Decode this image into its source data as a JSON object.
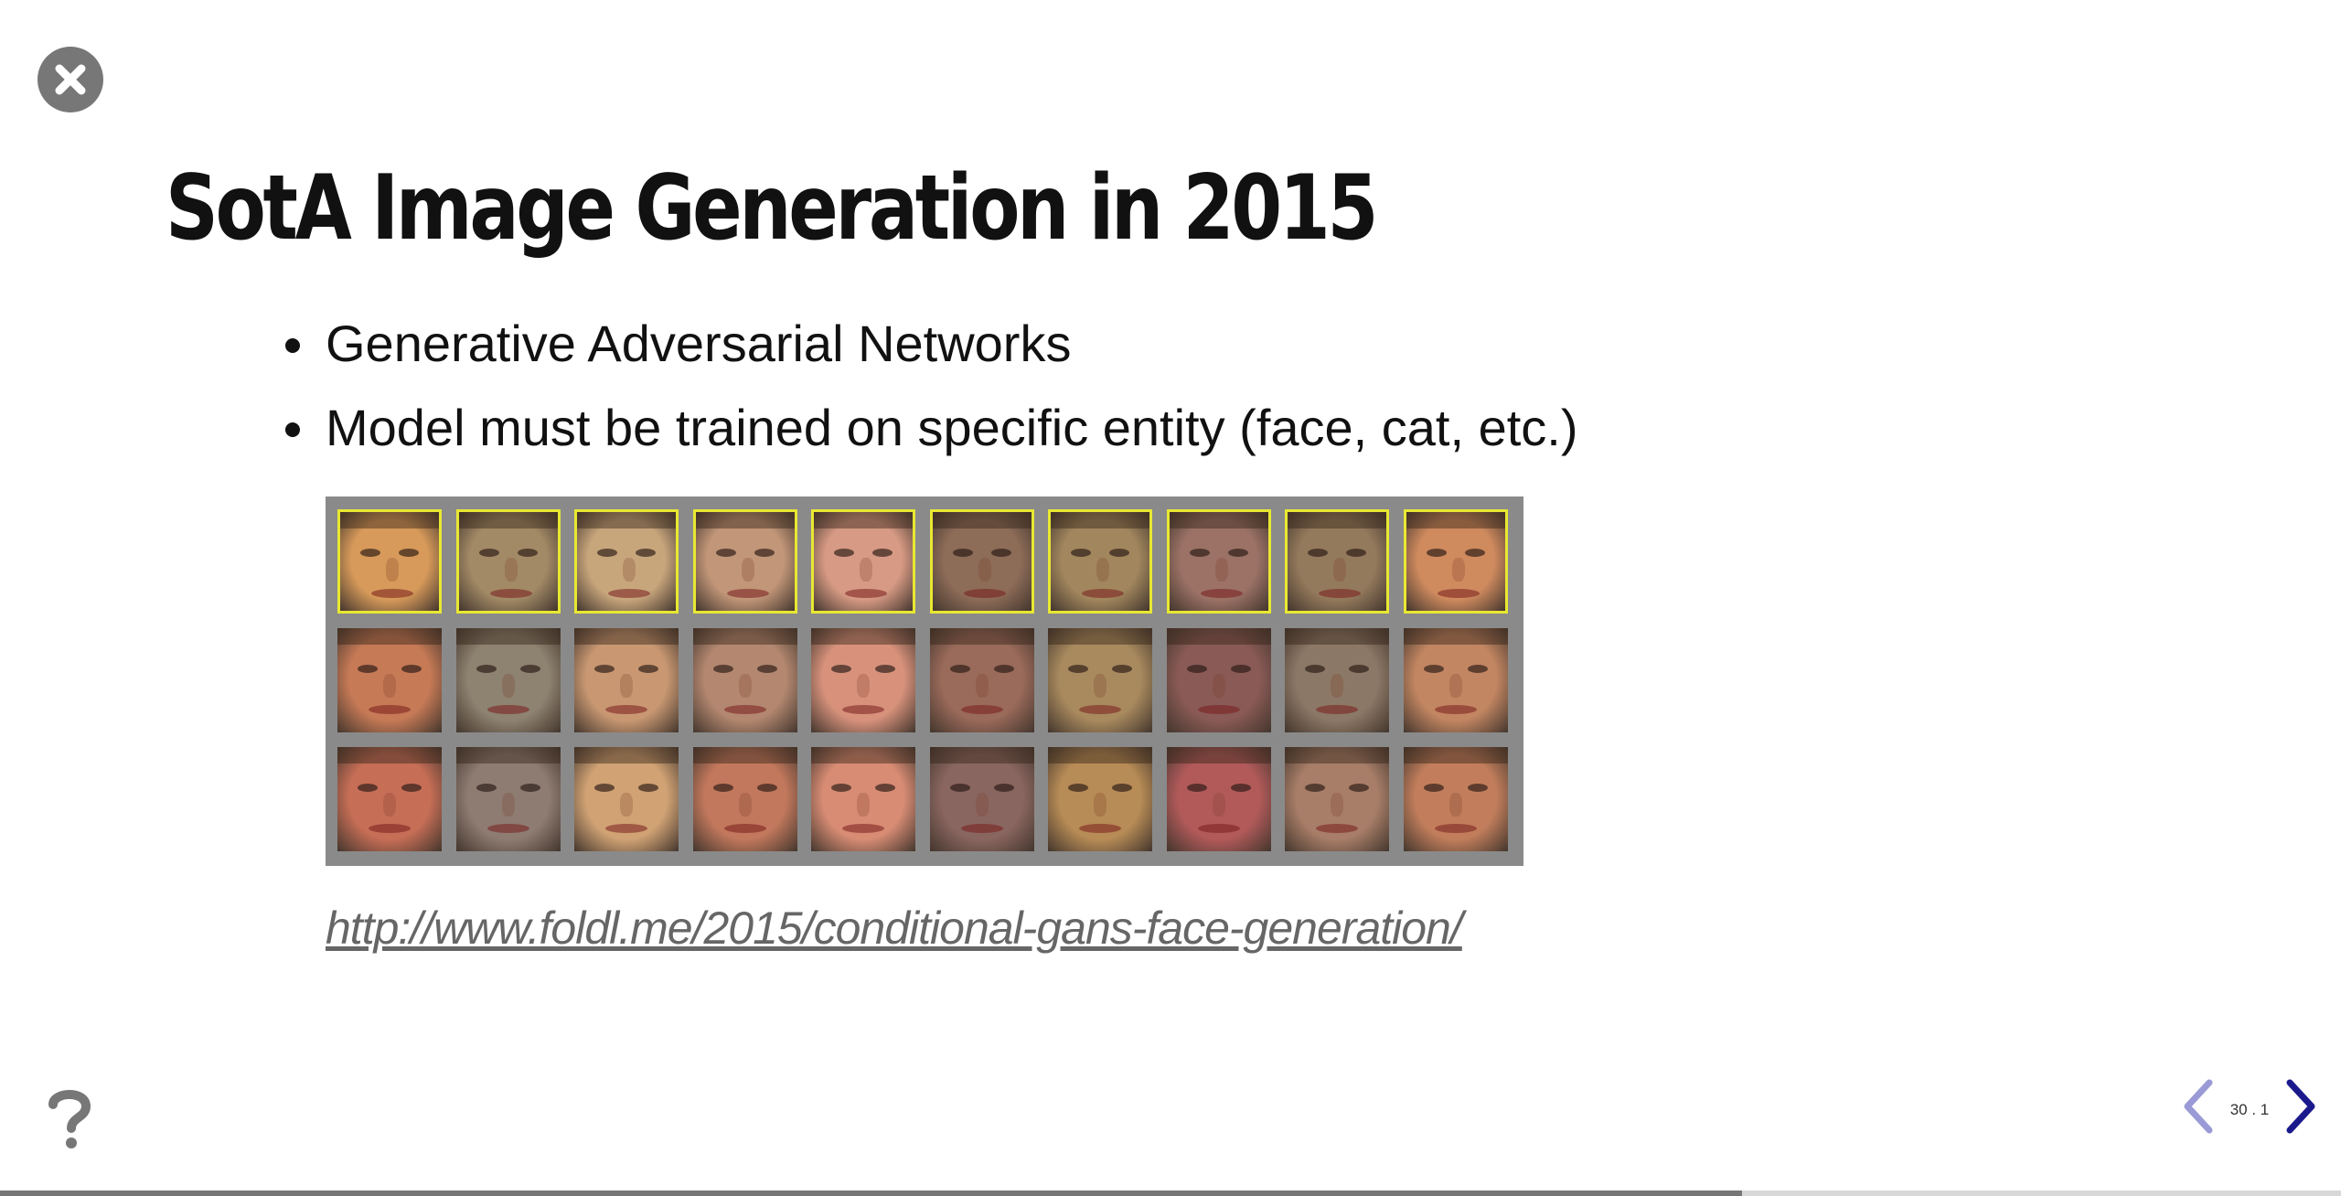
{
  "controls": {
    "close_icon": "close-icon",
    "help_icon": "help-icon",
    "prev_icon": "chevron-left-icon",
    "next_icon": "chevron-right-icon",
    "slide_number": "30 . 1",
    "progress_fraction": 0.744
  },
  "slide": {
    "title": "SotA Image Generation in 2015",
    "bullets": [
      "Generative Adversarial Networks",
      "Model must be trained on specific entity (face, cat, etc.)"
    ],
    "link_text": "http://www.foldl.me/2015/conditional-gans-face-generation/"
  },
  "image": {
    "rows": [
      [
        "#d79a5a",
        "#a38a66",
        "#c8a67c",
        "#c29678",
        "#d79a84",
        "#8d6c58",
        "#a2875e",
        "#9c7266",
        "#947a5c",
        "#cf8a5e"
      ],
      [
        "#c77a56",
        "#8e8270",
        "#c99872",
        "#b48870",
        "#d8927c",
        "#9a6a5a",
        "#a98a5e",
        "#8a5a56",
        "#8c7866",
        "#c38662"
      ],
      [
        "#c76e56",
        "#8e7c72",
        "#d0a274",
        "#c2785c",
        "#d88c74",
        "#8a6660",
        "#b88c56",
        "#b25a5a",
        "#a87e68",
        "#c27e5c"
      ]
    ],
    "selected_row": 0,
    "selected_border_color": "#e8e832",
    "background_color": "#8a8a8a"
  },
  "colors": {
    "nav_next": "#1a1a8c",
    "nav_prev": "#9a9ad6",
    "control_grey": "#777777"
  }
}
